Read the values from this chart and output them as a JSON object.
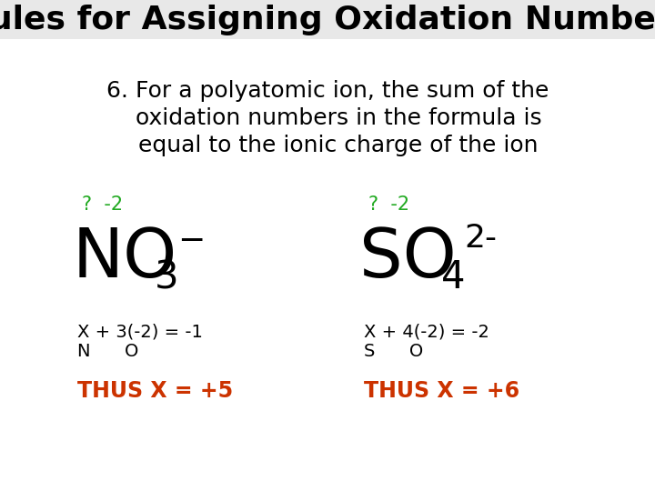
{
  "title": "Rules for Assigning Oxidation Numbers",
  "title_color": "#000000",
  "title_fontsize": 26,
  "bg_color": "#ffffff",
  "title_bg_color": "#e8e8e8",
  "body_line1": "6. For a polyatomic ion, the sum of the",
  "body_line2": "   oxidation numbers in the formula is",
  "body_line3": "   equal to the ionic charge of the ion",
  "body_color": "#000000",
  "body_fontsize": 18,
  "green_color": "#22aa22",
  "dark_red_color": "#cc3300",
  "black_color": "#000000",
  "left_label_q": "?  -2",
  "right_label_q": "?  -2",
  "left_eq_line1": "X + 3(-2) = -1",
  "left_eq_line2": "N      O",
  "right_eq_line1": "X + 4(-2) = -2",
  "right_eq_line2": "S      O",
  "left_thus": "THUS X = +5",
  "right_thus": "THUS X = +6",
  "formula_fontsize": 54,
  "sub_fontsize": 30,
  "super_fontsize": 26,
  "eq_fontsize": 14,
  "thus_fontsize": 17,
  "label_fontsize": 15
}
